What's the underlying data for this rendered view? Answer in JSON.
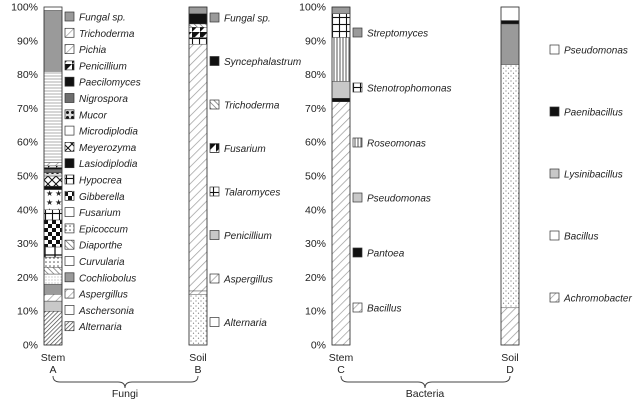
{
  "chart_data": [
    {
      "type": "bar",
      "stacked": true,
      "group": "Fungi",
      "category": "Stem",
      "panel": "A",
      "ylim": [
        0,
        100
      ],
      "yticks": [
        "0%",
        "10%",
        "20%",
        "30%",
        "40%",
        "50%",
        "60%",
        "70%",
        "80%",
        "90%",
        "100%"
      ],
      "series": [
        {
          "name": "Alternaria",
          "value": 10,
          "pattern": "diag-dense"
        },
        {
          "name": "Aschersonia",
          "value": 3,
          "pattern": "lightgray"
        },
        {
          "name": "Aspergillus",
          "value": 2,
          "pattern": "diag-light"
        },
        {
          "name": "Cochliobolus",
          "value": 3,
          "pattern": "gray"
        },
        {
          "name": "Curvularia",
          "value": 3,
          "pattern": "stipple-fine"
        },
        {
          "name": "Diaporthe",
          "value": 2,
          "pattern": "diag-med"
        },
        {
          "name": "Epicoccum",
          "value": 3,
          "pattern": "dots"
        },
        {
          "name": "Fusarium",
          "value": 3,
          "pattern": "cross"
        },
        {
          "name": "Gibberella",
          "value": 8,
          "pattern": "checker"
        },
        {
          "name": "Hypocrea",
          "value": 3,
          "pattern": "grid-box"
        },
        {
          "name": "Lasiodiplodia",
          "value": 6,
          "pattern": "stars"
        },
        {
          "name": "Meyerozyma",
          "value": 1,
          "pattern": "black"
        },
        {
          "name": "Microdiplodia",
          "value": 3,
          "pattern": "diamond-x"
        },
        {
          "name": "Mucor",
          "value": 1,
          "pattern": "dot-box"
        },
        {
          "name": "Nigrospora",
          "value": 1,
          "pattern": "darkgray"
        },
        {
          "name": "Paecilomyces",
          "value": 0.5,
          "pattern": "black"
        },
        {
          "name": "Penicillium",
          "value": 0.5,
          "pattern": "half"
        },
        {
          "name": "Pichia",
          "value": 1,
          "pattern": "diag-light"
        },
        {
          "name": "Trichoderma",
          "value": 27,
          "pattern": "hlines"
        },
        {
          "name": "Fungal sp.",
          "value": 18,
          "pattern": "gray"
        }
      ]
    },
    {
      "type": "bar",
      "stacked": true,
      "group": "Fungi",
      "category": "Soil",
      "panel": "B",
      "ylim": [
        0,
        100
      ],
      "series": [
        {
          "name": "Alternaria",
          "value": 15,
          "pattern": "stipple"
        },
        {
          "name": "Aspergillus",
          "value": 1,
          "pattern": "diag-light"
        },
        {
          "name": "Penicillium",
          "value": 73,
          "pattern": "diag-light"
        },
        {
          "name": "Talaromyces",
          "value": 2,
          "pattern": "grid-box"
        },
        {
          "name": "Fusarium",
          "value": 3,
          "pattern": "half"
        },
        {
          "name": "Trichoderma",
          "value": 1,
          "pattern": "diag-med"
        },
        {
          "name": "Syncephalastrum",
          "value": 3,
          "pattern": "black"
        },
        {
          "name": "Fungal sp.",
          "value": 2,
          "pattern": "gray"
        }
      ]
    },
    {
      "type": "bar",
      "stacked": true,
      "group": "Bacteria",
      "category": "Stem",
      "panel": "C",
      "ylim": [
        0,
        100
      ],
      "series": [
        {
          "name": "Bacillus",
          "value": 72,
          "pattern": "diag-light"
        },
        {
          "name": "Pantoea",
          "value": 1,
          "pattern": "black"
        },
        {
          "name": "Pseudomonas",
          "value": 5,
          "pattern": "lightgray"
        },
        {
          "name": "Roseomonas",
          "value": 13,
          "pattern": "vlines"
        },
        {
          "name": "Stenotrophomonas",
          "value": 7,
          "pattern": "grid-box"
        },
        {
          "name": "Streptomyces",
          "value": 2,
          "pattern": "gray"
        }
      ]
    },
    {
      "type": "bar",
      "stacked": true,
      "group": "Bacteria",
      "category": "Soil",
      "panel": "D",
      "ylim": [
        0,
        100
      ],
      "series": [
        {
          "name": "Achromobacter",
          "value": 11,
          "pattern": "diag-light"
        },
        {
          "name": "Bacillus",
          "value": 72,
          "pattern": "stipple"
        },
        {
          "name": "Lysinibacillus",
          "value": 12,
          "pattern": "gray"
        },
        {
          "name": "Paenibacillus",
          "value": 1,
          "pattern": "black"
        },
        {
          "name": "Pseudomonas",
          "value": 4,
          "pattern": "white"
        }
      ]
    }
  ],
  "legends": {
    "stem_fungi": [
      "Fungal sp.",
      "Trichoderma",
      "Pichia",
      "Penicillium",
      "Paecilomyces",
      "Nigrospora",
      "Mucor",
      "Microdiplodia",
      "Meyerozyma",
      "Lasiodiplodia",
      "Hypocrea",
      "Gibberella",
      "Fusarium",
      "Epicoccum",
      "Diaporthe",
      "Curvularia",
      "Cochliobolus",
      "Aspergillus",
      "Aschersonia",
      "Alternaria"
    ],
    "soil_fungi": [
      "Fungal sp.",
      "Syncephalastrum",
      "Trichoderma",
      "Fusarium",
      "Talaromyces",
      "Penicillium",
      "Aspergillus",
      "Alternaria"
    ],
    "stem_bacteria": [
      "Streptomyces",
      "Stenotrophomonas",
      "Roseomonas",
      "Pseudomonas",
      "Pantoea",
      "Bacillus"
    ],
    "soil_bacteria": [
      "Pseudomonas",
      "Paenibacillus",
      "Lysinibacillus",
      "Bacillus",
      "Achromobacter"
    ]
  },
  "legend_patterns": {
    "stem_fungi": [
      "gray",
      "diag-light",
      "diag-light",
      "half",
      "black",
      "darkgray",
      "dot-box",
      "white",
      "diamond-x",
      "black",
      "grid-box",
      "checker",
      "white",
      "dots",
      "diag-med",
      "white",
      "gray",
      "diag-light",
      "white",
      "diag-dense"
    ],
    "soil_fungi": [
      "gray",
      "black",
      "diag-med",
      "half",
      "grid-box",
      "lightgray",
      "diag-light",
      "white"
    ],
    "stem_bacteria": [
      "gray",
      "grid-box",
      "vlines",
      "lightgray",
      "black",
      "diag-light"
    ],
    "soil_bacteria": [
      "white",
      "black",
      "lightgray",
      "white",
      "diag-light"
    ]
  },
  "labels": {
    "bar_a_top": "Stem",
    "bar_a_bottom": "A",
    "bar_b_top": "Soil",
    "bar_b_bottom": "B",
    "bar_c_top": "Stem",
    "bar_c_bottom": "C",
    "bar_d_top": "Soil",
    "bar_d_bottom": "D",
    "group_fungi": "Fungi",
    "group_bacteria": "Bacteria"
  },
  "colors": {
    "ink": "#222222",
    "gray": "#9a9a9a",
    "darkgray": "#6e6e6e",
    "lightgray": "#c8c8c8",
    "black": "#111111"
  }
}
